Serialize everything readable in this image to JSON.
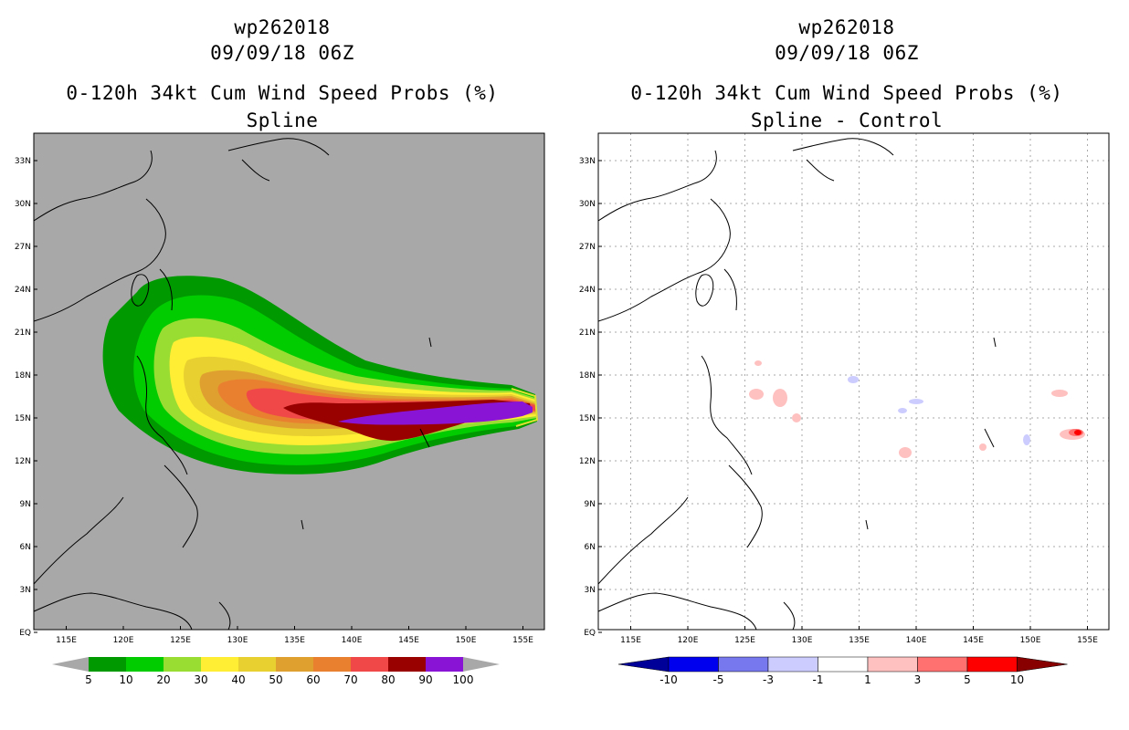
{
  "left_panel": {
    "storm_id": "wp262018",
    "datetime": "09/09/18 06Z",
    "product_title": "0-120h 34kt Cum Wind Speed Probs (%)",
    "subtitle": "Spline",
    "colorbar_labels": [
      "5",
      "10",
      "20",
      "30",
      "40",
      "50",
      "60",
      "70",
      "80",
      "90",
      "100"
    ],
    "colorbar_colors": [
      "#009900",
      "#00cc00",
      "#99dd33",
      "#ffee33",
      "#e8d030",
      "#e0a030",
      "#e88030",
      "#f04848",
      "#990000",
      "#8a14d6"
    ]
  },
  "right_panel": {
    "storm_id": "wp262018",
    "datetime": "09/09/18 06Z",
    "product_title": "0-120h 34kt Cum Wind Speed Probs (%)",
    "subtitle": "Spline - Control",
    "colorbar_labels": [
      "-10",
      "-5",
      "-3",
      "-1",
      "1",
      "3",
      "5",
      "10"
    ],
    "colorbar_colors": [
      "#000099",
      "#0000ee",
      "#7777ee",
      "#ccccff",
      "#ffffff",
      "#ffc0c0",
      "#ff7070",
      "#ff0000",
      "#880000"
    ]
  },
  "axes": {
    "lat_labels": [
      "33N",
      "30N",
      "27N",
      "24N",
      "21N",
      "18N",
      "15N",
      "12N",
      "9N",
      "6N",
      "3N",
      "EQ"
    ],
    "lon_labels": [
      "115E",
      "120E",
      "125E",
      "130E",
      "135E",
      "140E",
      "145E",
      "150E",
      "155E"
    ]
  },
  "colors": {
    "background_gray": "#a8a8a8",
    "coastline": "#000000",
    "grid": "#aaaaaa"
  }
}
